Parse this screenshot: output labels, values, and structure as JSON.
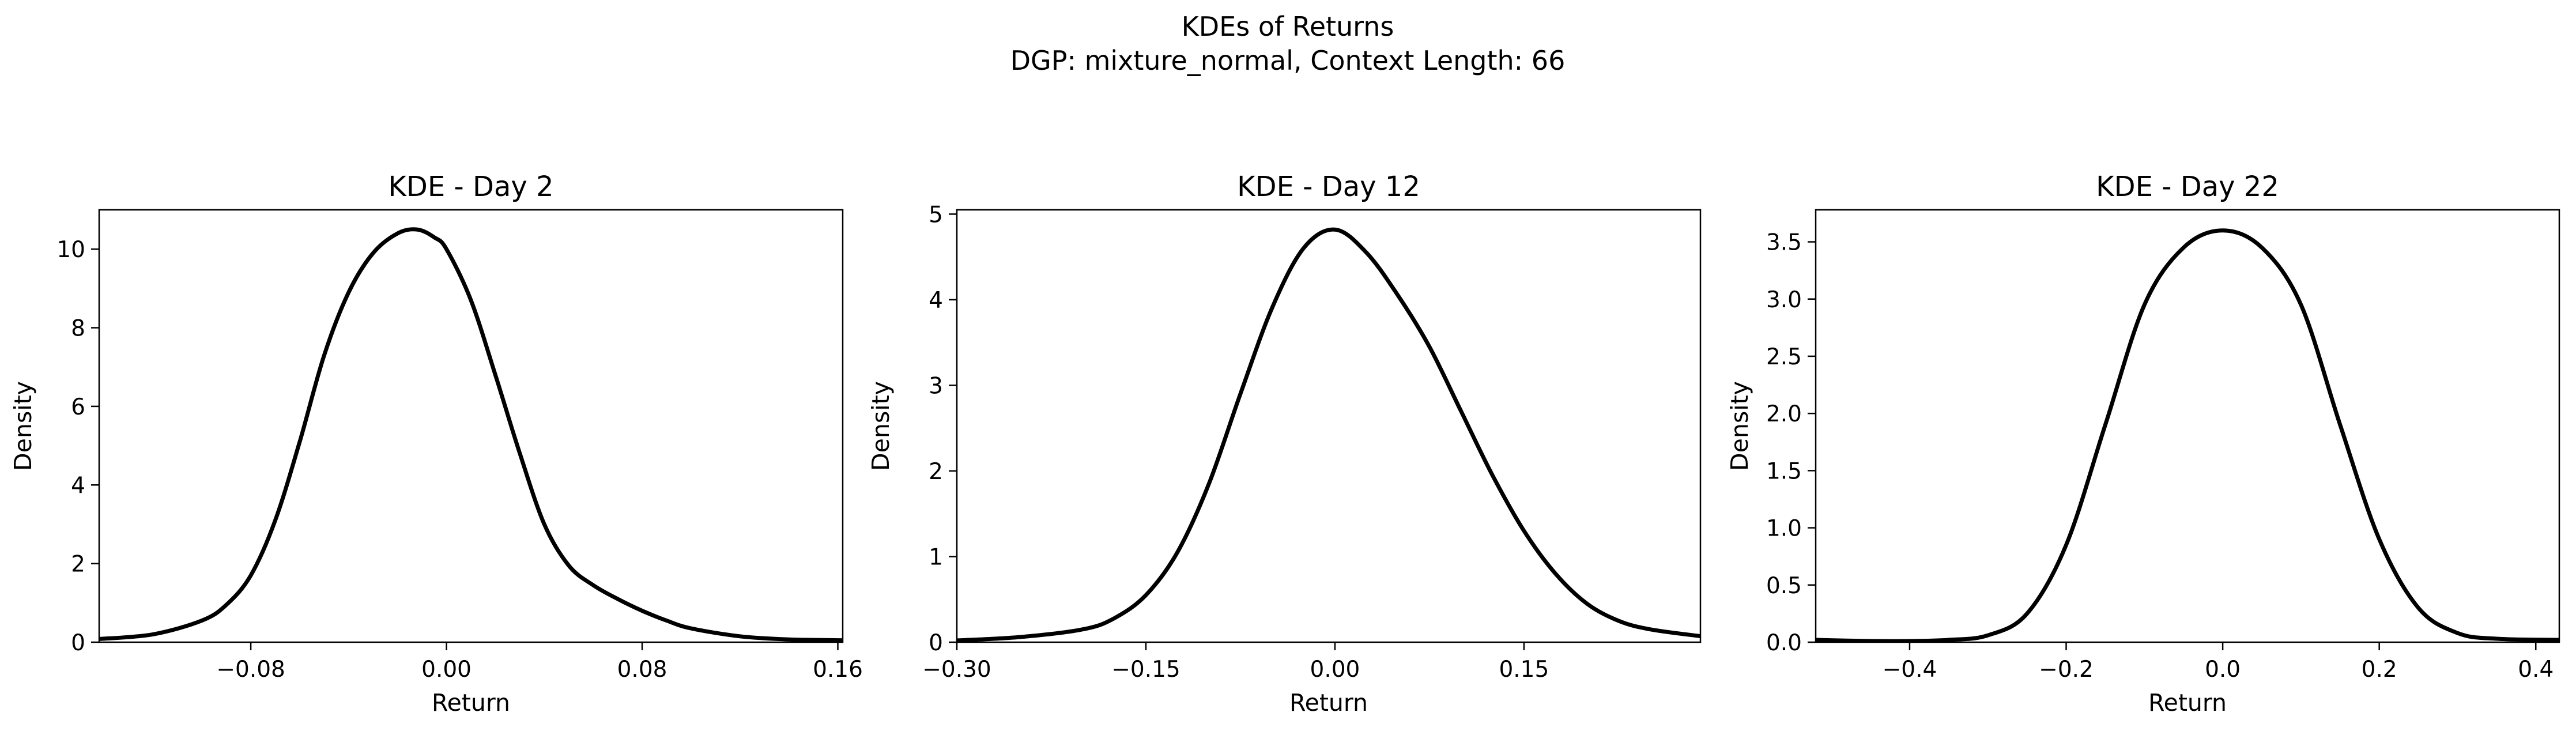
{
  "figure": {
    "title_line1": "KDEs of Returns",
    "title_line2": "DGP: mixture_normal, Context Length: 66",
    "line_color": "#000000"
  },
  "chart_data": [
    {
      "type": "line",
      "title": "KDE - Day 2",
      "xlabel": "Return",
      "ylabel": "Density",
      "xlim": [
        -0.142,
        0.162
      ],
      "ylim": [
        0,
        11
      ],
      "xticks": [
        -0.08,
        0.0,
        0.08,
        0.16
      ],
      "xtick_labels": [
        "−0.08",
        "0.00",
        "0.08",
        "0.16"
      ],
      "yticks": [
        0,
        2,
        4,
        6,
        8,
        10
      ],
      "ytick_labels": [
        "0",
        "2",
        "4",
        "6",
        "8",
        "10"
      ],
      "grid": false,
      "legend": "none",
      "series": [
        {
          "x": [
            -0.142,
            -0.12,
            -0.1,
            -0.09,
            -0.08,
            -0.07,
            -0.06,
            -0.05,
            -0.04,
            -0.03,
            -0.02,
            -0.012,
            -0.005,
            0.0,
            0.01,
            0.02,
            0.03,
            0.04,
            0.05,
            0.06,
            0.07,
            0.08,
            0.09,
            0.1,
            0.12,
            0.14,
            0.162
          ],
          "y": [
            0.08,
            0.2,
            0.55,
            0.95,
            1.7,
            3.1,
            5.1,
            7.3,
            8.9,
            9.9,
            10.4,
            10.5,
            10.3,
            10.0,
            8.7,
            6.8,
            4.8,
            3.0,
            1.95,
            1.45,
            1.1,
            0.8,
            0.55,
            0.35,
            0.15,
            0.07,
            0.05
          ]
        }
      ]
    },
    {
      "type": "line",
      "title": "KDE - Day 12",
      "xlabel": "Return",
      "ylabel": "Density",
      "xlim": [
        -0.3,
        0.29
      ],
      "ylim": [
        0,
        5.05
      ],
      "xticks": [
        -0.3,
        -0.15,
        0.0,
        0.15
      ],
      "xtick_labels": [
        "−0.30",
        "−0.15",
        "0.00",
        "0.15"
      ],
      "yticks": [
        0,
        1,
        2,
        3,
        4,
        5
      ],
      "ytick_labels": [
        "0",
        "1",
        "2",
        "3",
        "4",
        "5"
      ],
      "grid": false,
      "legend": "none",
      "series": [
        {
          "x": [
            -0.3,
            -0.25,
            -0.2,
            -0.175,
            -0.15,
            -0.125,
            -0.1,
            -0.075,
            -0.05,
            -0.025,
            0.0,
            0.025,
            0.05,
            0.075,
            0.1,
            0.125,
            0.15,
            0.175,
            0.2,
            0.225,
            0.25,
            0.29
          ],
          "y": [
            0.02,
            0.06,
            0.15,
            0.28,
            0.55,
            1.05,
            1.85,
            2.9,
            3.9,
            4.6,
            4.82,
            4.55,
            4.05,
            3.45,
            2.7,
            1.95,
            1.3,
            0.8,
            0.45,
            0.25,
            0.15,
            0.07
          ]
        }
      ]
    },
    {
      "type": "line",
      "title": "KDE - Day 22",
      "xlabel": "Return",
      "ylabel": "Density",
      "xlim": [
        -0.52,
        0.43
      ],
      "ylim": [
        0,
        3.78
      ],
      "xticks": [
        -0.4,
        -0.2,
        0.0,
        0.2,
        0.4
      ],
      "xtick_labels": [
        "−0.4",
        "−0.2",
        "0.0",
        "0.2",
        "0.4"
      ],
      "yticks": [
        0.0,
        0.5,
        1.0,
        1.5,
        2.0,
        2.5,
        3.0,
        3.5
      ],
      "ytick_labels": [
        "0.0",
        "0.5",
        "1.0",
        "1.5",
        "2.0",
        "2.5",
        "3.0",
        "3.5"
      ],
      "grid": false,
      "legend": "none",
      "series": [
        {
          "x": [
            -0.52,
            -0.45,
            -0.4,
            -0.35,
            -0.3,
            -0.25,
            -0.2,
            -0.15,
            -0.1,
            -0.05,
            0.0,
            0.05,
            0.1,
            0.15,
            0.2,
            0.25,
            0.3,
            0.35,
            0.43
          ],
          "y": [
            0.02,
            0.01,
            0.01,
            0.02,
            0.06,
            0.25,
            0.85,
            1.9,
            2.95,
            3.45,
            3.6,
            3.45,
            2.95,
            1.9,
            0.9,
            0.3,
            0.08,
            0.03,
            0.02
          ]
        }
      ]
    }
  ]
}
